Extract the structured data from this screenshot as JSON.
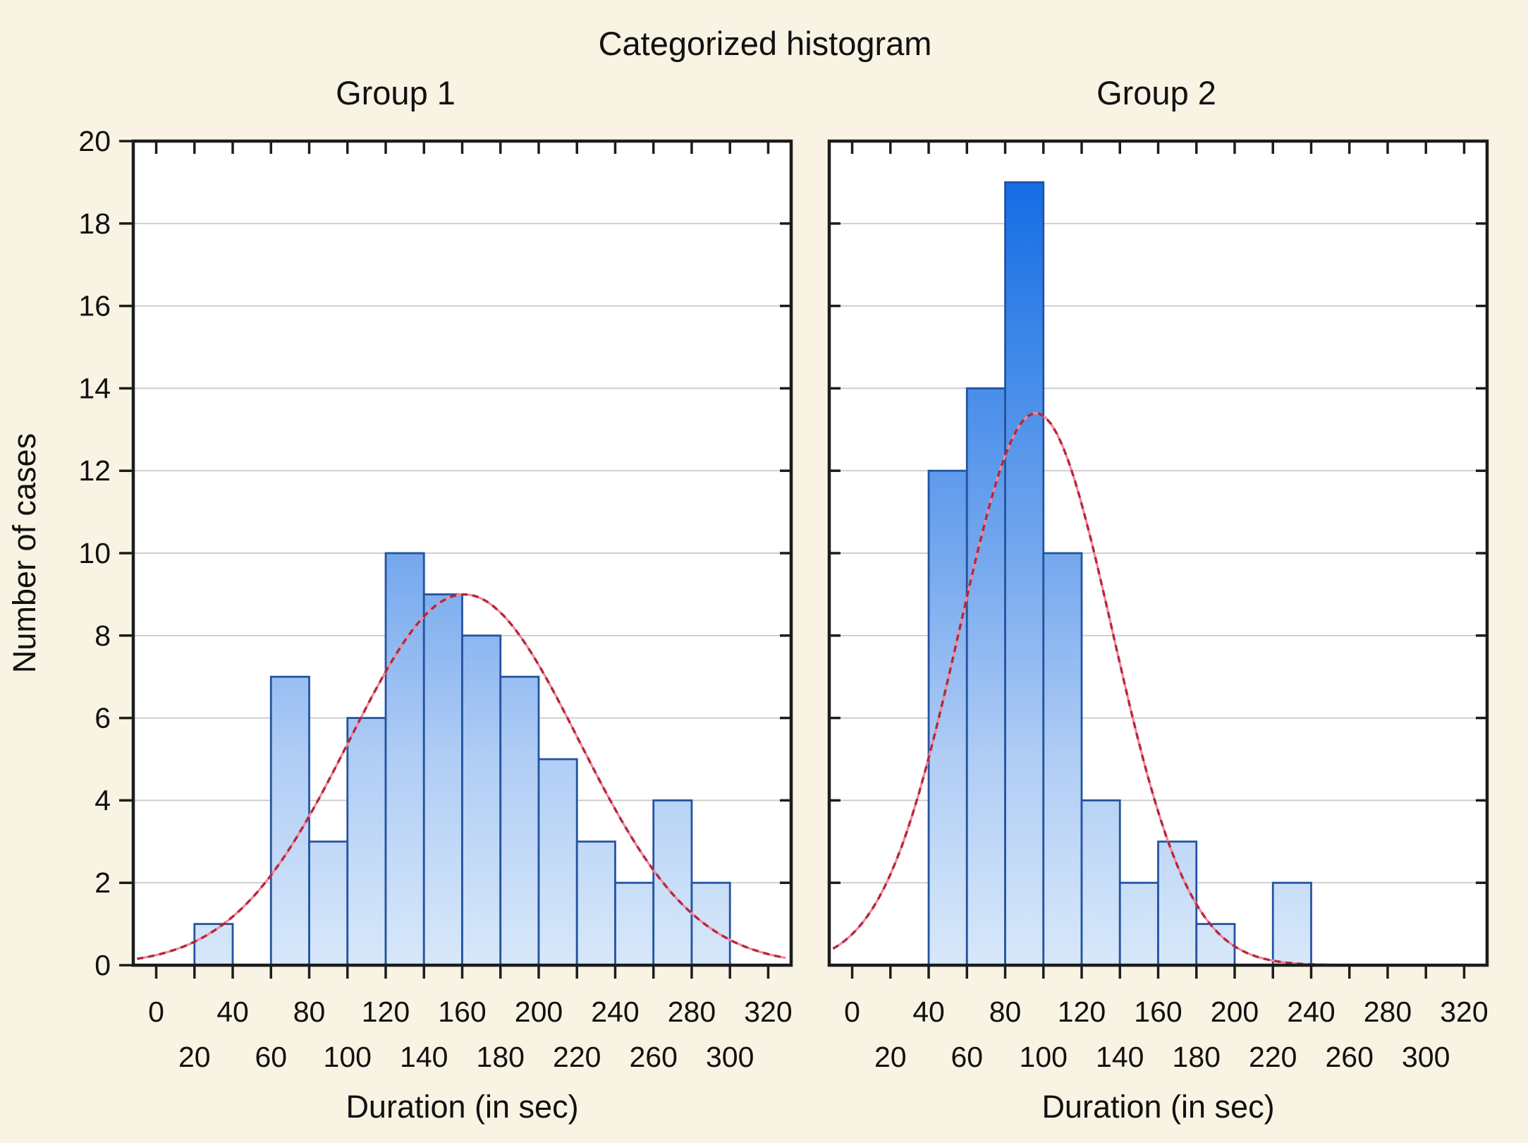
{
  "title": "Categorized histogram",
  "y_axis_title": "Number of cases",
  "x_axis_title": "Duration (in sec)",
  "chart_data": [
    {
      "type": "bar",
      "subtype": "histogram-with-normal-fit",
      "title": "Group 1",
      "xlabel": "Duration (in sec)",
      "ylabel": "Number of cases",
      "bin_width": 20,
      "bin_edges": [
        0,
        20,
        40,
        60,
        80,
        100,
        120,
        140,
        160,
        180,
        200,
        220,
        240,
        260,
        280,
        300,
        320
      ],
      "counts": [
        0,
        1,
        0,
        7,
        3,
        6,
        10,
        9,
        8,
        7,
        5,
        3,
        2,
        4,
        2,
        0
      ],
      "n_total": 67,
      "normal_fit": {
        "mean": 161,
        "sd": 60,
        "peak": 9.0
      },
      "x_ticks_row1": [
        0,
        40,
        80,
        120,
        160,
        200,
        240,
        280,
        320
      ],
      "x_ticks_row2": [
        20,
        60,
        100,
        140,
        180,
        220,
        260,
        300
      ],
      "y_ticks": [
        0,
        2,
        4,
        6,
        8,
        10,
        12,
        14,
        16,
        18,
        20
      ],
      "xlim": [
        -12,
        332
      ],
      "ylim": [
        0,
        20
      ],
      "grid": "horizontal",
      "legend": "none"
    },
    {
      "type": "bar",
      "subtype": "histogram-with-normal-fit",
      "title": "Group 2",
      "xlabel": "Duration (in sec)",
      "ylabel": "Number of cases",
      "bin_width": 20,
      "bin_edges": [
        0,
        20,
        40,
        60,
        80,
        100,
        120,
        140,
        160,
        180,
        200,
        220,
        240,
        260,
        280,
        300,
        320
      ],
      "counts": [
        0,
        0,
        12,
        14,
        19,
        10,
        4,
        2,
        3,
        1,
        0,
        2,
        0,
        0,
        0,
        0
      ],
      "n_total": 67,
      "normal_fit": {
        "mean": 96,
        "sd": 40,
        "peak": 13.4
      },
      "x_ticks_row1": [
        0,
        40,
        80,
        120,
        160,
        200,
        240,
        280,
        320
      ],
      "x_ticks_row2": [
        20,
        60,
        100,
        140,
        180,
        220,
        260,
        300
      ],
      "y_ticks": [
        0,
        2,
        4,
        6,
        8,
        10,
        12,
        14,
        16,
        18,
        20
      ],
      "xlim": [
        -12,
        332
      ],
      "ylim": [
        0,
        20
      ],
      "grid": "horizontal",
      "legend": "none"
    }
  ],
  "colors": {
    "background": "#f9f3e3",
    "plot_background": "#ffffff",
    "gridline": "#c8c8c8",
    "axis": "#1c1c1c",
    "bar_border": "#24549f",
    "bar_gradient_top": "#0b66e4",
    "bar_gradient_upper": "#3d87e9",
    "bar_gradient_mid": "#74a7ee",
    "bar_gradient_lower": "#b0cdf5",
    "bar_gradient_bottom": "#d8e8fa",
    "curve_dark": "#b2283f",
    "curve_light": "#ef8a9b"
  }
}
